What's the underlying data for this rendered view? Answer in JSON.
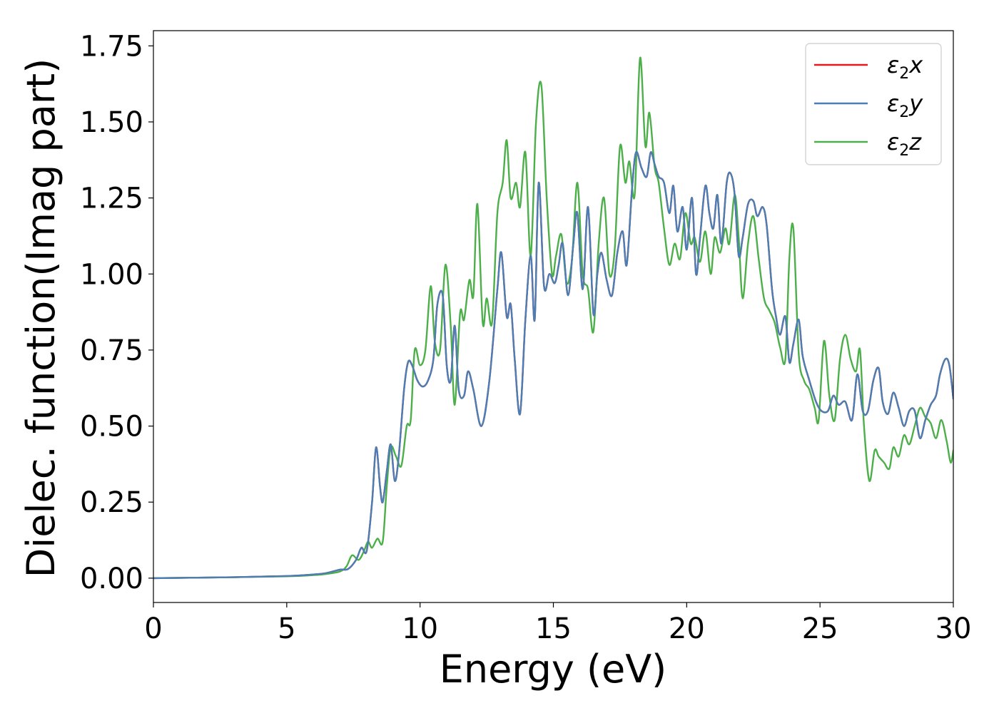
{
  "chart_data": {
    "type": "line",
    "xlabel": "Energy (eV)",
    "ylabel": "Dielec. function(Imag part)",
    "xlim": [
      0,
      30
    ],
    "ylim": [
      -0.08,
      1.8
    ],
    "xticks": [
      0,
      5,
      10,
      15,
      20,
      25,
      30
    ],
    "xtick_labels": [
      "0",
      "5",
      "10",
      "15",
      "20",
      "25",
      "30"
    ],
    "yticks": [
      0.0,
      0.25,
      0.5,
      0.75,
      1.0,
      1.25,
      1.5,
      1.75
    ],
    "ytick_labels": [
      "0.00",
      "0.25",
      "0.50",
      "0.75",
      "1.00",
      "1.25",
      "1.50",
      "1.75"
    ],
    "grid": false,
    "legend_position": "top-right",
    "series": [
      {
        "name": "ε",
        "legend_sub": "2",
        "legend_suffix": "x",
        "color": "#e41a1c",
        "x": [
          0,
          3,
          5,
          6,
          6.5,
          7,
          7.3,
          7.6,
          7.8,
          8.0,
          8.2,
          8.35,
          8.5,
          8.6,
          8.75,
          8.9,
          9.05,
          9.2,
          9.4,
          9.55,
          9.7,
          9.9,
          10.1,
          10.3,
          10.5,
          10.65,
          10.85,
          11.0,
          11.15,
          11.3,
          11.45,
          11.65,
          11.8,
          12.0,
          12.3,
          12.6,
          12.9,
          13.05,
          13.25,
          13.4,
          13.55,
          13.75,
          13.95,
          14.15,
          14.3,
          14.45,
          14.65,
          14.85,
          15.05,
          15.2,
          15.35,
          15.55,
          15.75,
          15.9,
          16.1,
          16.3,
          16.5,
          16.65,
          16.8,
          17.0,
          17.2,
          17.4,
          17.6,
          17.75,
          17.95,
          18.1,
          18.3,
          18.5,
          18.65,
          18.8,
          18.95,
          19.15,
          19.35,
          19.5,
          19.65,
          19.85,
          20.0,
          20.2,
          20.35,
          20.5,
          20.7,
          20.85,
          21.0,
          21.15,
          21.3,
          21.5,
          21.65,
          21.8,
          21.95,
          22.1,
          22.3,
          22.5,
          22.65,
          22.85,
          23.0,
          23.2,
          23.35,
          23.5,
          23.7,
          23.85,
          24.0,
          24.2,
          24.35,
          24.6,
          24.85,
          25.05,
          25.3,
          25.5,
          25.7,
          25.95,
          26.2,
          26.4,
          26.6,
          26.8,
          27.0,
          27.2,
          27.35,
          27.55,
          27.75,
          27.95,
          28.15,
          28.35,
          28.55,
          28.75,
          28.95,
          29.15,
          29.35,
          29.5,
          29.7,
          29.85,
          30.0
        ],
        "y": [
          0.0,
          0.003,
          0.007,
          0.012,
          0.017,
          0.028,
          0.03,
          0.06,
          0.1,
          0.09,
          0.25,
          0.43,
          0.3,
          0.25,
          0.35,
          0.44,
          0.32,
          0.4,
          0.62,
          0.71,
          0.7,
          0.65,
          0.63,
          0.65,
          0.72,
          0.9,
          0.93,
          0.7,
          0.65,
          0.83,
          0.62,
          0.6,
          0.68,
          0.62,
          0.5,
          0.65,
          0.95,
          1.07,
          0.86,
          0.9,
          0.72,
          0.54,
          0.85,
          1.06,
          0.85,
          1.3,
          0.96,
          1.0,
          0.97,
          1.03,
          1.1,
          0.93,
          1.1,
          1.2,
          0.95,
          1.22,
          0.87,
          1.0,
          1.07,
          0.98,
          0.93,
          1.07,
          1.14,
          1.03,
          1.28,
          1.4,
          1.35,
          1.32,
          1.4,
          1.36,
          1.32,
          1.3,
          1.2,
          1.29,
          1.14,
          1.22,
          1.08,
          1.25,
          1.0,
          1.12,
          1.29,
          1.2,
          1.15,
          1.26,
          1.1,
          1.3,
          1.33,
          1.26,
          1.06,
          1.12,
          1.23,
          1.24,
          1.19,
          1.22,
          1.16,
          0.95,
          0.86,
          0.8,
          0.86,
          0.71,
          0.77,
          0.85,
          0.73,
          0.65,
          0.58,
          0.55,
          0.55,
          0.6,
          0.57,
          0.58,
          0.52,
          0.67,
          0.55,
          0.55,
          0.65,
          0.69,
          0.58,
          0.54,
          0.61,
          0.56,
          0.5,
          0.55,
          0.55,
          0.46,
          0.52,
          0.57,
          0.6,
          0.67,
          0.72,
          0.7,
          0.59
        ]
      },
      {
        "name": "ε",
        "legend_sub": "2",
        "legend_suffix": "y",
        "color": "#4a7eb4",
        "x": [
          0,
          3,
          5,
          6,
          6.5,
          7,
          7.3,
          7.6,
          7.8,
          8.0,
          8.2,
          8.35,
          8.5,
          8.6,
          8.75,
          8.9,
          9.05,
          9.2,
          9.4,
          9.55,
          9.7,
          9.9,
          10.1,
          10.3,
          10.5,
          10.65,
          10.85,
          11.0,
          11.15,
          11.3,
          11.45,
          11.65,
          11.8,
          12.0,
          12.3,
          12.6,
          12.9,
          13.05,
          13.25,
          13.4,
          13.55,
          13.75,
          13.95,
          14.15,
          14.3,
          14.45,
          14.65,
          14.85,
          15.05,
          15.2,
          15.35,
          15.55,
          15.75,
          15.9,
          16.1,
          16.3,
          16.5,
          16.65,
          16.8,
          17.0,
          17.2,
          17.4,
          17.6,
          17.75,
          17.95,
          18.1,
          18.3,
          18.5,
          18.65,
          18.8,
          18.95,
          19.15,
          19.35,
          19.5,
          19.65,
          19.85,
          20.0,
          20.2,
          20.35,
          20.5,
          20.7,
          20.85,
          21.0,
          21.15,
          21.3,
          21.5,
          21.65,
          21.8,
          21.95,
          22.1,
          22.3,
          22.5,
          22.65,
          22.85,
          23.0,
          23.2,
          23.35,
          23.5,
          23.7,
          23.85,
          24.0,
          24.2,
          24.35,
          24.6,
          24.85,
          25.05,
          25.3,
          25.5,
          25.7,
          25.95,
          26.2,
          26.4,
          26.6,
          26.8,
          27.0,
          27.2,
          27.35,
          27.55,
          27.75,
          27.95,
          28.15,
          28.35,
          28.55,
          28.75,
          28.95,
          29.15,
          29.35,
          29.5,
          29.7,
          29.85,
          30.0
        ],
        "y": [
          0.0,
          0.003,
          0.007,
          0.012,
          0.017,
          0.028,
          0.03,
          0.06,
          0.1,
          0.09,
          0.25,
          0.43,
          0.3,
          0.25,
          0.35,
          0.44,
          0.32,
          0.4,
          0.62,
          0.71,
          0.7,
          0.65,
          0.63,
          0.65,
          0.72,
          0.9,
          0.93,
          0.7,
          0.65,
          0.83,
          0.62,
          0.6,
          0.68,
          0.62,
          0.5,
          0.65,
          0.95,
          1.07,
          0.86,
          0.9,
          0.72,
          0.54,
          0.85,
          1.06,
          0.85,
          1.3,
          0.96,
          1.0,
          0.97,
          1.03,
          1.1,
          0.93,
          1.1,
          1.2,
          0.95,
          1.22,
          0.87,
          1.0,
          1.07,
          0.98,
          0.93,
          1.07,
          1.14,
          1.03,
          1.28,
          1.4,
          1.35,
          1.32,
          1.4,
          1.36,
          1.32,
          1.3,
          1.2,
          1.29,
          1.14,
          1.22,
          1.08,
          1.25,
          1.0,
          1.12,
          1.29,
          1.2,
          1.15,
          1.26,
          1.1,
          1.3,
          1.33,
          1.26,
          1.06,
          1.12,
          1.23,
          1.24,
          1.19,
          1.22,
          1.16,
          0.95,
          0.86,
          0.8,
          0.86,
          0.71,
          0.77,
          0.85,
          0.73,
          0.65,
          0.58,
          0.55,
          0.55,
          0.6,
          0.57,
          0.58,
          0.52,
          0.67,
          0.55,
          0.55,
          0.65,
          0.69,
          0.58,
          0.54,
          0.61,
          0.56,
          0.5,
          0.55,
          0.55,
          0.46,
          0.52,
          0.57,
          0.6,
          0.67,
          0.72,
          0.7,
          0.59
        ]
      },
      {
        "name": "ε",
        "legend_sub": "2",
        "legend_suffix": "z",
        "color": "#4daf4a",
        "x": [
          0,
          3,
          5,
          6,
          6.5,
          7,
          7.25,
          7.45,
          7.7,
          7.9,
          8.05,
          8.2,
          8.4,
          8.6,
          8.75,
          8.9,
          9.1,
          9.3,
          9.5,
          9.65,
          9.8,
          10.0,
          10.2,
          10.4,
          10.55,
          10.75,
          10.95,
          11.15,
          11.3,
          11.5,
          11.65,
          11.85,
          12.0,
          12.15,
          12.35,
          12.5,
          12.7,
          12.9,
          13.1,
          13.25,
          13.4,
          13.6,
          13.75,
          13.95,
          14.15,
          14.35,
          14.55,
          14.75,
          14.95,
          15.1,
          15.3,
          15.5,
          15.7,
          15.9,
          16.1,
          16.3,
          16.5,
          16.7,
          16.9,
          17.1,
          17.3,
          17.5,
          17.7,
          17.85,
          18.05,
          18.25,
          18.45,
          18.6,
          18.8,
          18.95,
          19.15,
          19.35,
          19.55,
          19.75,
          19.95,
          20.15,
          20.3,
          20.5,
          20.7,
          20.9,
          21.05,
          21.25,
          21.45,
          21.6,
          21.8,
          21.95,
          22.1,
          22.3,
          22.5,
          22.7,
          22.9,
          23.1,
          23.3,
          23.5,
          23.7,
          23.85,
          24.0,
          24.2,
          24.4,
          24.6,
          24.8,
          24.95,
          25.15,
          25.35,
          25.55,
          25.75,
          25.95,
          26.15,
          26.35,
          26.5,
          26.65,
          26.85,
          27.05,
          27.2,
          27.4,
          27.6,
          27.75,
          27.95,
          28.15,
          28.35,
          28.55,
          28.75,
          28.95,
          29.15,
          29.35,
          29.55,
          29.75,
          29.9,
          30.0
        ],
        "y": [
          0.0,
          0.003,
          0.006,
          0.01,
          0.014,
          0.022,
          0.04,
          0.075,
          0.06,
          0.09,
          0.12,
          0.1,
          0.13,
          0.12,
          0.3,
          0.43,
          0.4,
          0.37,
          0.5,
          0.52,
          0.75,
          0.7,
          0.75,
          0.96,
          0.78,
          0.75,
          1.03,
          0.83,
          0.57,
          0.87,
          0.85,
          0.98,
          0.93,
          1.23,
          0.84,
          0.92,
          0.84,
          1.2,
          1.3,
          1.44,
          1.25,
          1.3,
          1.22,
          1.4,
          1.06,
          1.5,
          1.62,
          1.25,
          1.0,
          1.06,
          1.13,
          0.97,
          1.05,
          1.3,
          1.0,
          0.95,
          0.81,
          1.1,
          1.25,
          1.0,
          1.08,
          1.42,
          1.3,
          1.37,
          1.26,
          1.71,
          1.42,
          1.53,
          1.35,
          1.3,
          1.15,
          1.03,
          1.1,
          1.05,
          1.2,
          1.1,
          1.12,
          1.04,
          1.14,
          1.0,
          1.12,
          1.07,
          1.15,
          1.1,
          1.26,
          1.12,
          0.92,
          1.1,
          1.19,
          1.05,
          0.92,
          0.88,
          0.84,
          0.76,
          0.72,
          1.05,
          1.15,
          0.74,
          0.65,
          0.62,
          0.56,
          0.52,
          0.78,
          0.6,
          0.52,
          0.72,
          0.8,
          0.72,
          0.68,
          0.75,
          0.5,
          0.32,
          0.42,
          0.4,
          0.38,
          0.36,
          0.43,
          0.4,
          0.47,
          0.44,
          0.5,
          0.56,
          0.53,
          0.51,
          0.46,
          0.52,
          0.45,
          0.38,
          0.42
        ]
      }
    ]
  }
}
